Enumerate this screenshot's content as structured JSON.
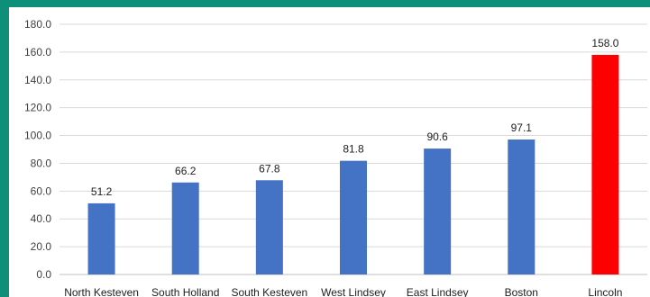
{
  "chart_data": {
    "type": "bar",
    "title": "",
    "xlabel": "",
    "ylabel": "",
    "ylim": [
      0,
      180
    ],
    "yticks": [
      "0.0",
      "20.0",
      "40.0",
      "60.0",
      "80.0",
      "100.0",
      "120.0",
      "140.0",
      "160.0",
      "180.0"
    ],
    "categories": [
      "North Kesteven",
      "South Holland",
      "South Kesteven",
      "West Lindsey",
      "East Lindsey",
      "Boston",
      "Lincoln"
    ],
    "values": [
      51.2,
      66.2,
      67.8,
      81.8,
      90.6,
      97.1,
      158.0
    ],
    "value_labels": [
      "51.2",
      "66.2",
      "67.8",
      "81.8",
      "90.6",
      "97.1",
      "158.0"
    ],
    "colors": [
      "#4472c4",
      "#4472c4",
      "#4472c4",
      "#4472c4",
      "#4472c4",
      "#4472c4",
      "#ff0000"
    ],
    "grid": true,
    "legend": "none"
  }
}
